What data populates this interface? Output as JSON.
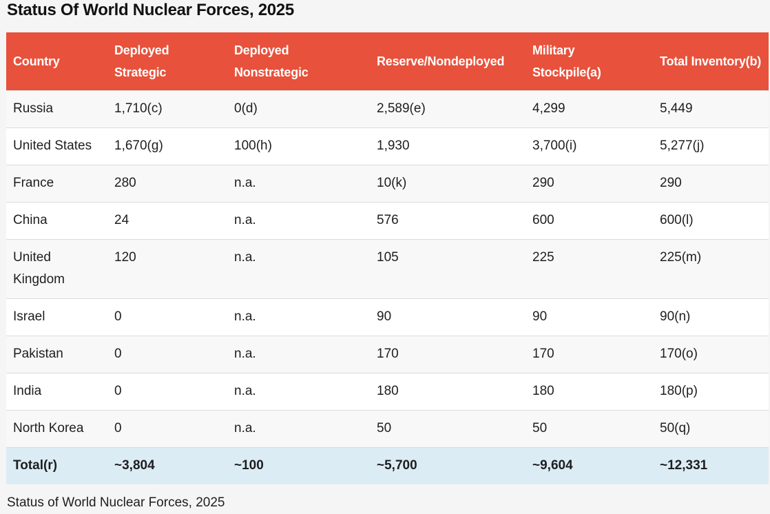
{
  "page": {
    "title": "Status Of World Nuclear Forces, 2025",
    "caption": "Status of World Nuclear Forces, 2025"
  },
  "colors": {
    "header_bg": "#e8513b",
    "header_text": "#ffffff",
    "total_row_bg": "#dcecf5",
    "page_bg": "#f5f5f5"
  },
  "table": {
    "headers": [
      "Country",
      "Deployed Strategic",
      "Deployed Nonstrategic",
      "Reserve/Nondeployed",
      "Military Stockpile(a)",
      "Total Inventory(b)"
    ],
    "rows": [
      [
        "Russia",
        "1,710(c)",
        "0(d)",
        "2,589(e)",
        "4,299",
        "5,449"
      ],
      [
        "United States",
        "1,670(g)",
        "100(h)",
        "1,930",
        "3,700(i)",
        "5,277(j)"
      ],
      [
        "France",
        "280",
        "n.a.",
        "10(k)",
        "290",
        "290"
      ],
      [
        "China",
        "24",
        "n.a.",
        "576",
        "600",
        "600(l)"
      ],
      [
        "United Kingdom",
        "120",
        "n.a.",
        "105",
        "225",
        "225(m)"
      ],
      [
        "Israel",
        "0",
        "n.a.",
        "90",
        "90",
        "90(n)"
      ],
      [
        "Pakistan",
        "0",
        "n.a.",
        "170",
        "170",
        "170(o)"
      ],
      [
        "India",
        "0",
        "n.a.",
        "180",
        "180",
        "180(p)"
      ],
      [
        "North Korea",
        "0",
        "n.a.",
        "50",
        "50",
        "50(q)"
      ]
    ],
    "total": [
      "Total(r)",
      "~3,804",
      "~100",
      "~5,700",
      "~9,604",
      "~12,331"
    ]
  }
}
